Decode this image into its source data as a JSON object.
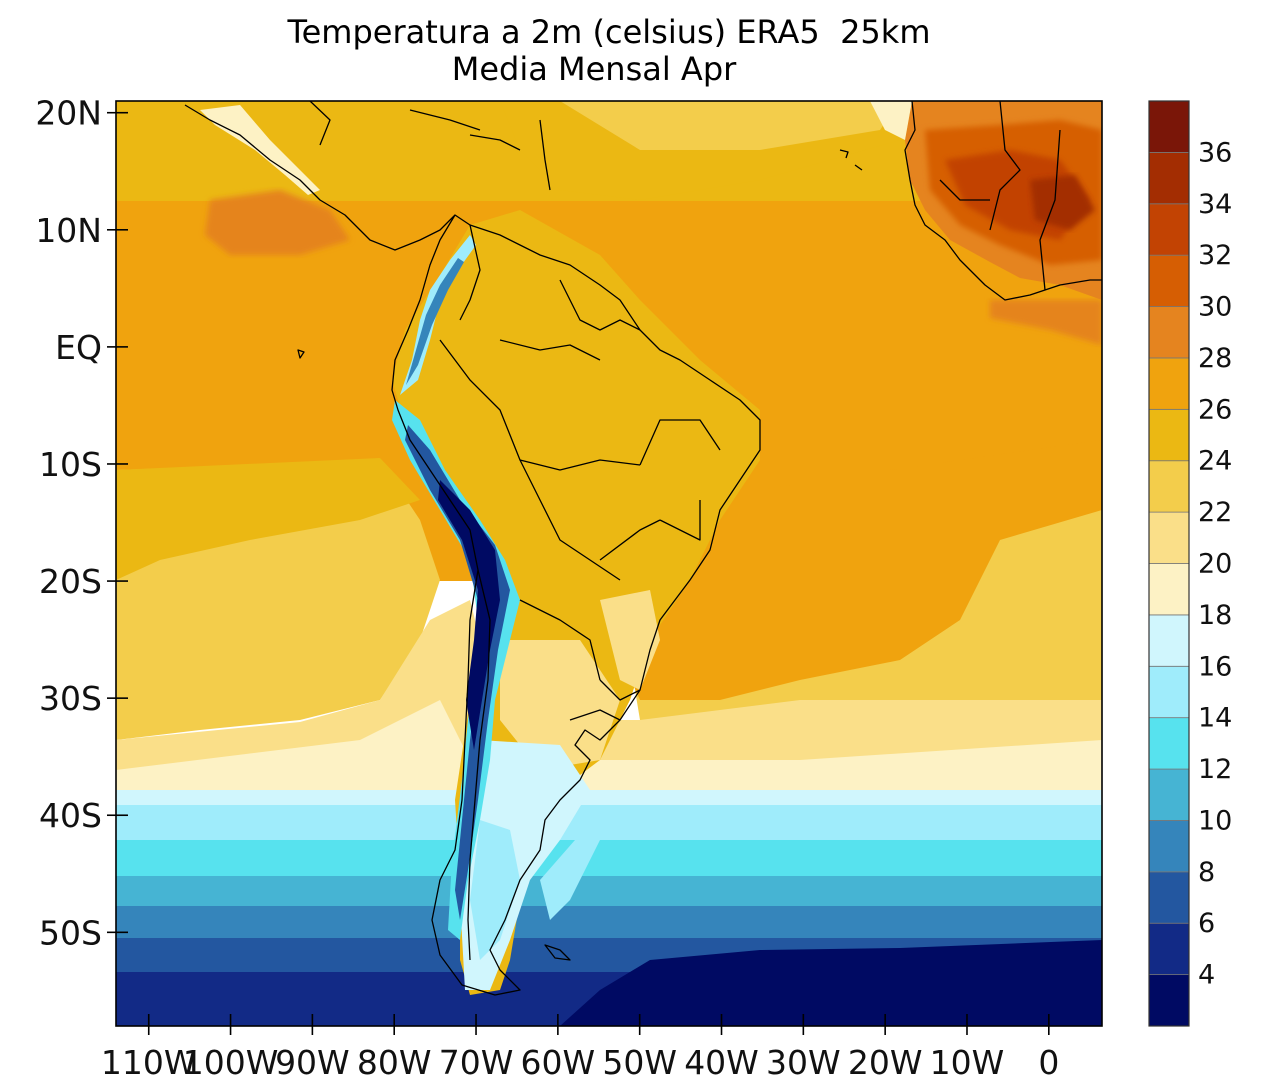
{
  "title": {
    "line1": "Temperatura a 2m (celsius) ERA5  25km",
    "line2": "Media Mensal Apr"
  },
  "chart_data": {
    "type": "heatmap",
    "variable": "2m air temperature",
    "units": "celsius",
    "source": "ERA5",
    "resolution": "25km",
    "period": "Media Mensal Apr",
    "lat_range": [
      -58,
      21
    ],
    "lon_range": [
      -114,
      6.5
    ],
    "lat_ticks": [
      {
        "value": 20,
        "label": "20N"
      },
      {
        "value": 10,
        "label": "10N"
      },
      {
        "value": 0,
        "label": "EQ"
      },
      {
        "value": -10,
        "label": "10S"
      },
      {
        "value": -20,
        "label": "20S"
      },
      {
        "value": -30,
        "label": "30S"
      },
      {
        "value": -40,
        "label": "40S"
      },
      {
        "value": -50,
        "label": "50S"
      }
    ],
    "lon_ticks": [
      {
        "value": -110,
        "label": "110W"
      },
      {
        "value": -100,
        "label": "100W"
      },
      {
        "value": -90,
        "label": "90W"
      },
      {
        "value": -80,
        "label": "80W"
      },
      {
        "value": -70,
        "label": "70W"
      },
      {
        "value": -60,
        "label": "60W"
      },
      {
        "value": -50,
        "label": "50W"
      },
      {
        "value": -40,
        "label": "40W"
      },
      {
        "value": -30,
        "label": "30W"
      },
      {
        "value": -20,
        "label": "20W"
      },
      {
        "value": -10,
        "label": "10W"
      },
      {
        "value": 0,
        "label": "0"
      }
    ],
    "colorbar": {
      "levels": [
        4,
        6,
        8,
        10,
        12,
        14,
        16,
        18,
        20,
        22,
        24,
        26,
        28,
        30,
        32,
        34,
        36
      ],
      "colors": [
        "#000a63",
        "#122a86",
        "#2357a0",
        "#3585bb",
        "#46b4d3",
        "#57e2ee",
        "#9fecfb",
        "#d0f6fd",
        "#fdf2c5",
        "#fadf89",
        "#f3cd4b",
        "#ebb813",
        "#f0a30e",
        "#e5841f",
        "#d65e03",
        "#c24303",
        "#a32d02",
        "#7a1608"
      ]
    },
    "features": [
      "Andes cordillera cold band (below 4 to 14 C)",
      "Southern ocean below 4 C south of 52S",
      "West Africa hot spots (32 to 36 C)",
      "Tropical Atlantic and Pacific 26 to 28 C"
    ]
  }
}
